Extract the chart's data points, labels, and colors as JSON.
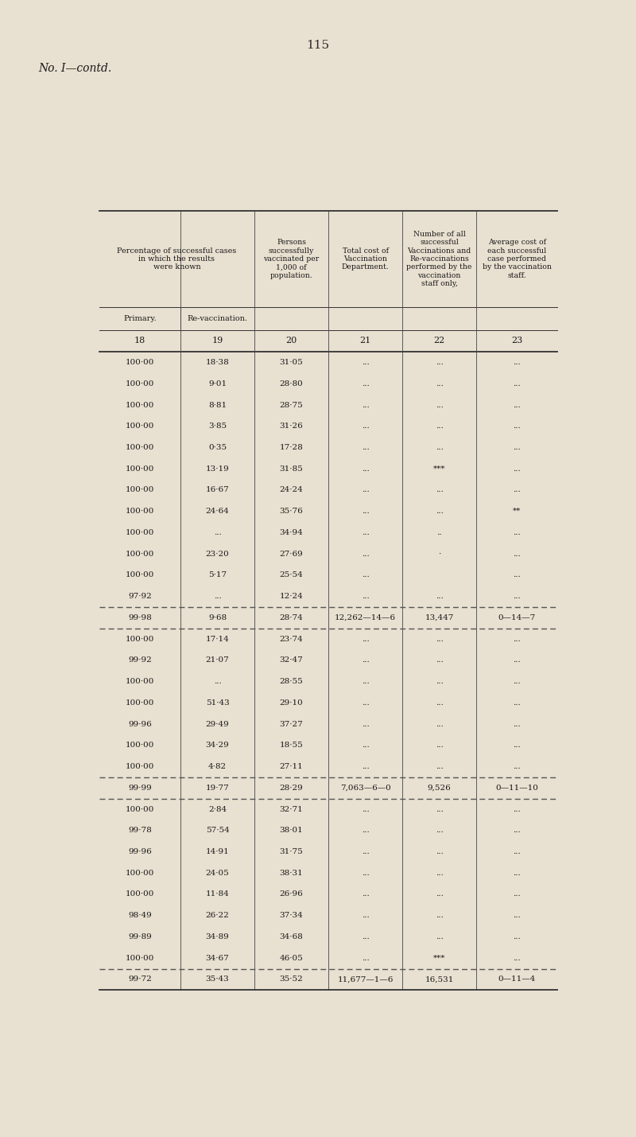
{
  "page_number": "115",
  "subtitle": "No. I—contd.",
  "bg_color": "#e8e0d0",
  "col_numbers": [
    "18",
    "19",
    "20",
    "21",
    "22",
    "23"
  ],
  "rows_group1": [
    [
      "100·00",
      "18·38",
      "31·05",
      "...",
      "...",
      "..."
    ],
    [
      "100·00",
      "9·01",
      "28·80",
      "...",
      "...",
      "..."
    ],
    [
      "100·00",
      "8·81",
      "28·75",
      "...",
      "...",
      "..."
    ],
    [
      "100·00",
      "3·85",
      "31·26",
      "...",
      "...",
      "..."
    ],
    [
      "100·00",
      "0·35",
      "17·28",
      "...",
      "...",
      "..."
    ],
    [
      "100·00",
      "13·19",
      "31·85",
      "...",
      "***",
      "..."
    ],
    [
      "100·00",
      "16·67",
      "24·24",
      "...",
      "...",
      "..."
    ],
    [
      "100·00",
      "24·64",
      "35·76",
      "...",
      "...",
      "**"
    ],
    [
      "100·00",
      "...",
      "34·94",
      "...",
      "..",
      "..."
    ],
    [
      "100·00",
      "23·20",
      "27·69",
      "...",
      "·",
      "..."
    ],
    [
      "100·00",
      "5·17",
      "25·54",
      "...",
      "",
      "..."
    ],
    [
      "97·92",
      "...",
      "12·24",
      "...",
      "...",
      "..."
    ]
  ],
  "subtotal1": [
    "99·98",
    "9·68",
    "28·74",
    "12,262—14—6",
    "13,447",
    "0—14—7"
  ],
  "rows_group2": [
    [
      "100·00",
      "17·14",
      "23·74",
      "...",
      "...",
      "..."
    ],
    [
      "99·92",
      "21·07",
      "32·47",
      "...",
      "...",
      "..."
    ],
    [
      "100·00",
      "...",
      "28·55",
      "...",
      "...",
      "..."
    ],
    [
      "100·00",
      "51·43",
      "29·10",
      "...",
      "...",
      "..."
    ],
    [
      "99·96",
      "29·49",
      "37·27",
      "...",
      "...",
      "..."
    ],
    [
      "100·00",
      "34·29",
      "18·55",
      "...",
      "...",
      "..."
    ],
    [
      "100·00",
      "4·82",
      "27·11",
      "...",
      "...",
      "..."
    ]
  ],
  "subtotal2": [
    "99·99",
    "19·77",
    "28·29",
    "7,063—6—0",
    "9,526",
    "0—11—10"
  ],
  "rows_group3": [
    [
      "100·00",
      "2·84",
      "32·71",
      "...",
      "...",
      "..."
    ],
    [
      "99·78",
      "57·54",
      "38·01",
      "...",
      "...",
      "..."
    ],
    [
      "99·96",
      "14·91",
      "31·75",
      "...",
      "...",
      "..."
    ],
    [
      "100·00",
      "24·05",
      "38·31",
      "...",
      "...",
      "..."
    ],
    [
      "100·00",
      "11·84",
      "26·96",
      "...",
      "...",
      "..."
    ],
    [
      "98·49",
      "26·22",
      "37·34",
      "...",
      "...",
      "..."
    ],
    [
      "99·89",
      "34·89",
      "34·68",
      "...",
      "...",
      "..."
    ],
    [
      "100·00",
      "34·67",
      "46·05",
      "...",
      "***",
      "..."
    ]
  ],
  "subtotal3": [
    "99·72",
    "35·43",
    "35·52",
    "11,677—1—6",
    "16,531",
    "0—11—4"
  ]
}
